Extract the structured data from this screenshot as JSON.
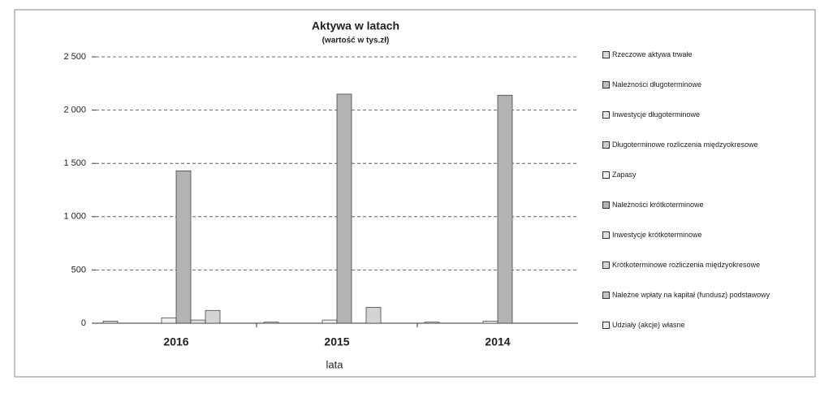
{
  "chart_data": {
    "type": "bar",
    "title": "Aktywa w latach",
    "subtitle": "(wartość w tys.zł)",
    "x_label": "lata",
    "categories": [
      "2016",
      "2015",
      "2014"
    ],
    "series": [
      {
        "name": "Rzeczowe aktywa trwałe",
        "color": "#d9d9d9",
        "values": [
          20,
          10,
          10
        ]
      },
      {
        "name": "Należności długoterminowe",
        "color": "#bfbfbf",
        "values": [
          0,
          0,
          0
        ]
      },
      {
        "name": "Inwestycje długoterminowe",
        "color": "#e6e6e6",
        "values": [
          0,
          0,
          0
        ]
      },
      {
        "name": "Długoterminowe rozliczenia międzyokresowe",
        "color": "#cccccc",
        "values": [
          0,
          0,
          0
        ]
      },
      {
        "name": "Zapasy",
        "color": "#f0f0f0",
        "values": [
          50,
          30,
          20
        ]
      },
      {
        "name": "Należności krótkoterminowe",
        "color": "#b3b3b3",
        "values": [
          1430,
          2150,
          2140
        ]
      },
      {
        "name": "Inwestycje krótkoterminowe",
        "color": "#e0e0e0",
        "values": [
          30,
          0,
          0
        ]
      },
      {
        "name": "Krótkoterminowe rozliczenia międzyokresowe",
        "color": "#d4d4d4",
        "values": [
          120,
          150,
          0
        ]
      },
      {
        "name": "Należne wpłaty na kapitał (fundusz) podstawowy",
        "color": "#c4c4c4",
        "values": [
          0,
          0,
          0
        ]
      },
      {
        "name": "Udziały (akcje) własne",
        "color": "#ebebeb",
        "values": [
          0,
          0,
          0
        ]
      }
    ],
    "ylim": [
      0,
      2500
    ],
    "yticks": [
      0,
      500,
      {
        "value": 1000,
        "label": "1 000"
      },
      {
        "value": 1500,
        "label": "1 500"
      },
      {
        "value": 2000,
        "label": "2 000"
      },
      {
        "value": 2500,
        "label": "2 500"
      }
    ],
    "grid": true
  }
}
